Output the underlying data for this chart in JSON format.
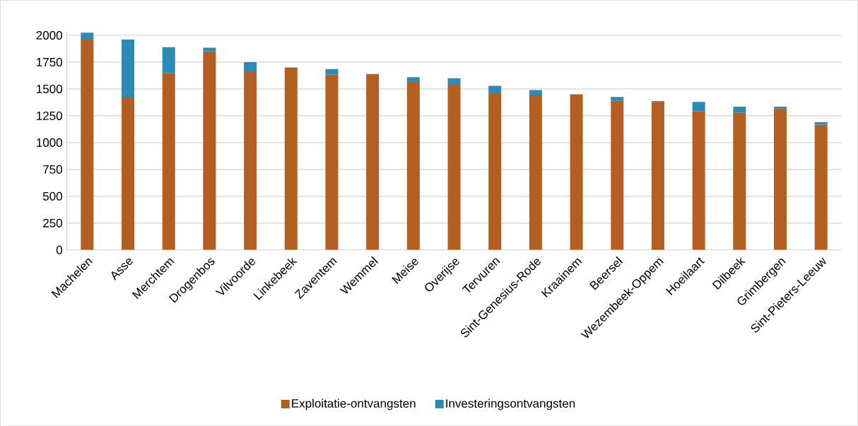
{
  "chart_data": {
    "type": "bar",
    "stacked": true,
    "categories": [
      "Machelen",
      "Asse",
      "Merchtem",
      "Drogenbos",
      "Vilvoorde",
      "Linkebeek",
      "Zaventem",
      "Wemmel",
      "Meise",
      "Overijse",
      "Tervuren",
      "Sint-Genesius-Rode",
      "Kraainem",
      "Beersel",
      "Wezembeek-Oppem",
      "Hoeilaart",
      "Dilbeek",
      "Grimbergen",
      "Sint-Pieters-Leeuw"
    ],
    "series": [
      {
        "name": "Exploitatie-ontvangsten",
        "color": "#b45f22",
        "values": [
          1960,
          1420,
          1650,
          1850,
          1665,
          1700,
          1635,
          1640,
          1565,
          1545,
          1460,
          1440,
          1450,
          1390,
          1380,
          1290,
          1280,
          1320,
          1165
        ]
      },
      {
        "name": "Investeringsontvangsten",
        "color": "#2b8bb5",
        "values": [
          65,
          540,
          240,
          35,
          85,
          0,
          50,
          0,
          45,
          55,
          70,
          50,
          0,
          35,
          8,
          90,
          55,
          15,
          25
        ]
      }
    ],
    "ylim": [
      0,
      2030
    ],
    "yticks": [
      0,
      250,
      500,
      750,
      1000,
      1250,
      1500,
      1750,
      2000
    ],
    "grid": "y",
    "legend": "bottom"
  }
}
